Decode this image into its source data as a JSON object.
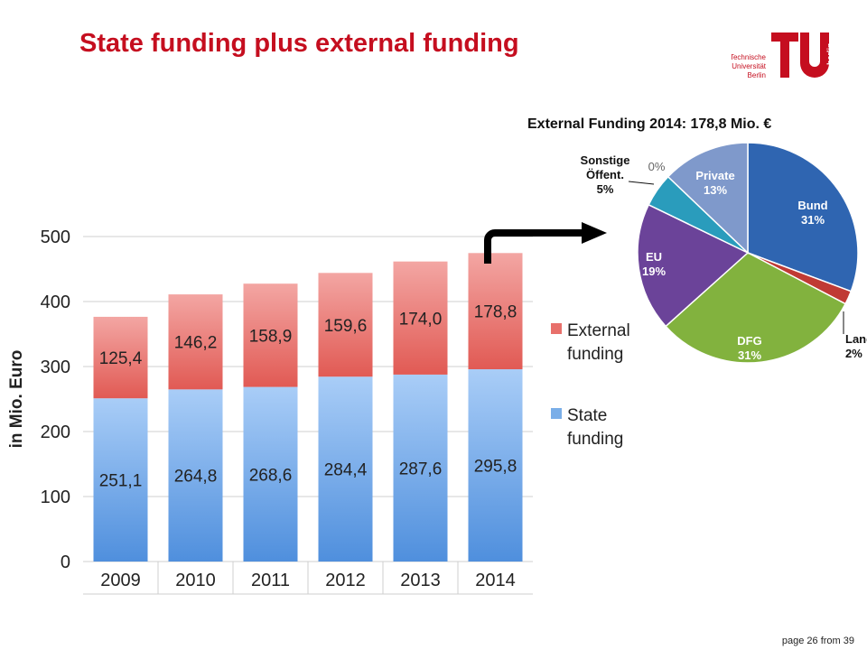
{
  "slide": {
    "title": "State funding plus external funding",
    "page_label": "page 26 from 39",
    "logo_text": [
      "Technische",
      "Universität",
      "Berlin"
    ],
    "logo_side_text": "berlin"
  },
  "chart_data": [
    {
      "type": "bar",
      "stacked": true,
      "categories": [
        "2009",
        "2010",
        "2011",
        "2012",
        "2013",
        "2014"
      ],
      "series": [
        {
          "name": "State funding",
          "values": [
            251.1,
            264.8,
            268.6,
            284.4,
            287.6,
            295.8
          ],
          "color": "#8bb8ee",
          "labels": [
            "251,1",
            "264,8",
            "268,6",
            "284,4",
            "287,6",
            "295,8"
          ]
        },
        {
          "name": "External funding",
          "values": [
            125.4,
            146.2,
            158.9,
            159.6,
            174.0,
            178.8
          ],
          "color": "#ec8784",
          "labels": [
            "125,4",
            "146,2",
            "158,9",
            "159,6",
            "174,0",
            "178,8"
          ]
        }
      ],
      "legend_lines": {
        "External funding": [
          "External",
          "funding"
        ],
        "State funding": [
          "State",
          "funding"
        ]
      },
      "ylabel": "in Mio. Euro",
      "ylim": [
        0,
        500
      ],
      "yticks": [
        "0",
        "100",
        "200",
        "300",
        "400",
        "500"
      ],
      "grid": true,
      "legend_position": "right"
    },
    {
      "type": "pie",
      "title": "External Funding  2014: 178,8 Mio. €",
      "slices": [
        {
          "label": "Bund",
          "value": 31,
          "display": "31%",
          "color": "#2f65b1"
        },
        {
          "label": "Land",
          "value": 2,
          "display": "2%",
          "color": "#c03a34"
        },
        {
          "label": "DFG",
          "value": 31,
          "display": "31%",
          "color": "#82b23e"
        },
        {
          "label": "EU",
          "value": 19,
          "display": "19%",
          "color": "#6b4399"
        },
        {
          "label": "Sonstige Öffent.",
          "value": 5,
          "display": "5%",
          "color": "#2a9cbc"
        },
        {
          "label": "",
          "value": 0,
          "display": "0%",
          "color": "#e07a1f"
        },
        {
          "label": "Private",
          "value": 13,
          "display": "13%",
          "color": "#7f99cb"
        }
      ],
      "label_lines": {
        "Sonstige Öffent.": [
          "Sonstige",
          "Öffent."
        ]
      }
    }
  ]
}
